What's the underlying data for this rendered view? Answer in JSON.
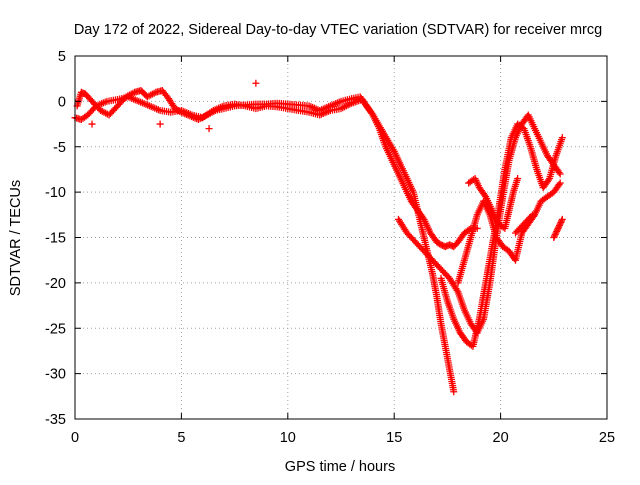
{
  "chart_data": {
    "type": "scatter",
    "title": "Day 172 of 2022, Sidereal Day-to-day VTEC variation (SDTVAR) for receiver mrcg",
    "xlabel": "GPS time / hours",
    "ylabel": "SDTVAR / TECUs",
    "xlim": [
      0,
      25
    ],
    "ylim": [
      -35,
      5
    ],
    "x_ticks": [
      0,
      5,
      10,
      15,
      20,
      25
    ],
    "y_ticks": [
      5,
      0,
      -5,
      -10,
      -15,
      -20,
      -25,
      -30,
      -35
    ],
    "grid": true,
    "legend": "none",
    "marker": "+",
    "color": "#ff0000",
    "series": [
      {
        "x": [
          0.1,
          0.3,
          0.5,
          0.8,
          1.2,
          1.6,
          2.0,
          2.4,
          2.8,
          3.1,
          3.4,
          3.8,
          4.1,
          4.4,
          4.7,
          5.0,
          5.4,
          5.8,
          6.2,
          6.6,
          7.0,
          7.5,
          8.0,
          8.5,
          9.0,
          9.5,
          10.0,
          10.5,
          11.0,
          11.5,
          12.0,
          12.5,
          13.0,
          13.4,
          13.7,
          14.0,
          14.3,
          14.6,
          14.9,
          15.2,
          15.5,
          15.8,
          16.1,
          16.4,
          16.7,
          17.0,
          17.2,
          17.4,
          17.6,
          17.8,
          18.0,
          18.3,
          18.6,
          18.9
        ],
        "y": [
          -0.5,
          1.0,
          0.8,
          0.0,
          -1.0,
          -1.5,
          -0.5,
          0.5,
          1.0,
          1.2,
          0.5,
          1.0,
          1.2,
          0.3,
          -0.8,
          -1.2,
          -1.6,
          -2.0,
          -1.5,
          -1.0,
          -0.8,
          -0.5,
          -0.4,
          -0.3,
          -0.3,
          -0.2,
          -0.3,
          -0.4,
          -0.5,
          -1.0,
          -0.5,
          0.0,
          0.3,
          0.5,
          -0.5,
          -1.5,
          -3.0,
          -5.0,
          -6.5,
          -8.0,
          -9.5,
          -11.0,
          -12.0,
          -13.0,
          -14.5,
          -15.5,
          -15.8,
          -16.0,
          -15.8,
          -16.0,
          -15.5,
          -14.5,
          -14.0,
          -14.0
        ]
      },
      {
        "x": [
          0.0,
          0.3,
          0.6,
          1.0,
          1.5,
          2.0,
          2.5,
          3.0,
          3.5,
          4.0,
          4.5,
          5.0,
          5.5,
          6.0,
          6.5,
          7.0,
          7.5,
          8.0,
          8.5,
          9.0,
          9.5,
          10.0,
          10.5,
          11.0,
          11.5,
          12.0,
          12.5,
          13.0,
          13.5,
          14.0,
          14.5,
          15.0,
          15.3,
          15.6,
          15.9,
          16.2,
          16.5,
          16.8,
          17.0,
          17.2,
          17.4,
          17.6,
          17.8
        ],
        "y": [
          -1.8,
          -2.0,
          -1.5,
          -0.5,
          0.0,
          0.2,
          0.5,
          0.0,
          -0.5,
          -1.0,
          -1.2,
          -1.0,
          -1.5,
          -1.8,
          -1.0,
          -0.5,
          -0.3,
          -0.5,
          -0.8,
          -0.5,
          -0.6,
          -0.8,
          -1.0,
          -1.2,
          -1.5,
          -1.0,
          -0.8,
          -0.2,
          0.2,
          -1.5,
          -3.5,
          -5.5,
          -7.0,
          -8.5,
          -10.0,
          -13.0,
          -16.0,
          -19.0,
          -21.5,
          -24.5,
          -27.0,
          -29.5,
          -32.0
        ]
      },
      {
        "x": [
          15.2,
          15.6,
          16.0,
          16.4,
          16.8,
          17.2,
          17.6,
          18.0,
          18.3,
          18.6,
          18.9,
          19.2,
          19.5,
          19.8,
          20.1,
          20.4,
          20.7,
          21.0,
          21.3,
          21.6,
          21.9,
          22.2,
          22.5,
          22.8
        ],
        "y": [
          -13.0,
          -14.5,
          -15.5,
          -16.5,
          -17.5,
          -18.5,
          -19.5,
          -21.0,
          -23.0,
          -24.5,
          -25.5,
          -24.0,
          -20.0,
          -15.0,
          -10.5,
          -6.5,
          -4.0,
          -2.5,
          -1.5,
          -3.0,
          -4.5,
          -6.0,
          -7.0,
          -8.0
        ]
      },
      {
        "x": [
          17.2,
          17.5,
          17.8,
          18.1,
          18.4,
          18.7,
          19.0,
          19.3,
          19.6,
          19.9,
          20.2,
          20.5,
          20.8,
          21.1,
          21.4,
          21.7,
          22.0,
          22.3,
          22.6,
          22.9
        ],
        "y": [
          -19.5,
          -22.0,
          -24.0,
          -25.5,
          -26.5,
          -27.0,
          -24.0,
          -20.0,
          -16.0,
          -12.0,
          -7.5,
          -4.0,
          -2.5,
          -3.0,
          -5.0,
          -7.5,
          -9.5,
          -8.5,
          -6.0,
          -4.0
        ]
      },
      {
        "x": [
          18.0,
          18.3,
          18.6,
          18.9,
          19.2,
          19.5,
          19.8,
          20.1,
          20.4,
          20.7,
          21.0,
          21.3,
          21.6,
          21.9,
          22.2,
          22.5,
          22.8
        ],
        "y": [
          -20.0,
          -17.5,
          -15.0,
          -12.5,
          -11.0,
          -12.5,
          -15.0,
          -16.0,
          -16.5,
          -17.5,
          -14.5,
          -13.5,
          -12.5,
          -11.0,
          -10.5,
          -10.0,
          -9.0
        ]
      },
      {
        "x": [
          18.5,
          18.8,
          19.0,
          19.3,
          19.6,
          19.9,
          20.2,
          20.4,
          20.6,
          20.8
        ],
        "y": [
          -9.0,
          -8.5,
          -9.5,
          -10.5,
          -12.0,
          -13.5,
          -14.0,
          -12.0,
          -10.0,
          -8.5
        ]
      },
      {
        "x": [
          20.7,
          20.9,
          21.1,
          21.3,
          21.5
        ],
        "y": [
          -14.5,
          -14.0,
          -13.5,
          -13.0,
          -12.5
        ]
      },
      {
        "x": [
          22.5,
          22.6,
          22.7,
          22.8,
          22.9
        ],
        "y": [
          -15.0,
          -14.5,
          -14.0,
          -13.5,
          -13.0
        ]
      },
      {
        "x": [
          8.5,
          6.3,
          0.8,
          4.0
        ],
        "y": [
          2.0,
          -3.0,
          -2.5,
          -2.5
        ]
      }
    ]
  }
}
